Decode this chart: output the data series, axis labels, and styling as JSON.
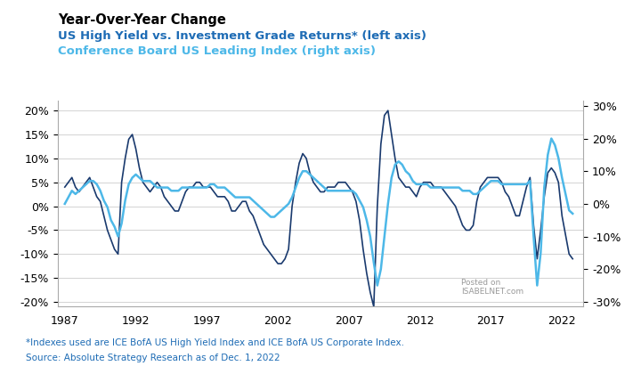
{
  "title_black": "Year-Over-Year Change",
  "title_blue1": "US High Yield vs. Investment Grade Returns* (left axis)",
  "title_blue2": "Conference Board US Leading Index (right axis)",
  "footnote1": "*Indexes used are ICE BofA US High Yield Index and ICE BofA US Corporate Index.",
  "footnote2": "Source: Absolute Strategy Research as of Dec. 1, 2022",
  "watermark": "Posted on\nISABELNET.com",
  "color_dark_blue": "#1a3a6e",
  "color_light_blue": "#4db8e8",
  "color_title_blue": "#1e6cb5",
  "left_ylim": [
    -0.21,
    0.22
  ],
  "right_ylim": [
    -0.315,
    0.315
  ],
  "left_yticks": [
    -0.2,
    -0.15,
    -0.1,
    -0.05,
    0.0,
    0.05,
    0.1,
    0.15,
    0.2
  ],
  "right_yticks": [
    -0.3,
    -0.2,
    -0.1,
    0.0,
    0.1,
    0.2,
    0.3
  ],
  "xticks": [
    1987,
    1992,
    1997,
    2002,
    2007,
    2012,
    2017,
    2022
  ],
  "xlim": [
    1986.5,
    2023.5
  ],
  "background_color": "#ffffff",
  "hy_ig_data": {
    "years": [
      1987.0,
      1987.25,
      1987.5,
      1987.75,
      1988.0,
      1988.25,
      1988.5,
      1988.75,
      1989.0,
      1989.25,
      1989.5,
      1989.75,
      1990.0,
      1990.25,
      1990.5,
      1990.75,
      1991.0,
      1991.25,
      1991.5,
      1991.75,
      1992.0,
      1992.25,
      1992.5,
      1992.75,
      1993.0,
      1993.25,
      1993.5,
      1993.75,
      1994.0,
      1994.25,
      1994.5,
      1994.75,
      1995.0,
      1995.25,
      1995.5,
      1995.75,
      1996.0,
      1996.25,
      1996.5,
      1996.75,
      1997.0,
      1997.25,
      1997.5,
      1997.75,
      1998.0,
      1998.25,
      1998.5,
      1998.75,
      1999.0,
      1999.25,
      1999.5,
      1999.75,
      2000.0,
      2000.25,
      2000.5,
      2000.75,
      2001.0,
      2001.25,
      2001.5,
      2001.75,
      2002.0,
      2002.25,
      2002.5,
      2002.75,
      2003.0,
      2003.25,
      2003.5,
      2003.75,
      2004.0,
      2004.25,
      2004.5,
      2004.75,
      2005.0,
      2005.25,
      2005.5,
      2005.75,
      2006.0,
      2006.25,
      2006.5,
      2006.75,
      2007.0,
      2007.25,
      2007.5,
      2007.75,
      2008.0,
      2008.25,
      2008.5,
      2008.75,
      2009.0,
      2009.25,
      2009.5,
      2009.75,
      2010.0,
      2010.25,
      2010.5,
      2010.75,
      2011.0,
      2011.25,
      2011.5,
      2011.75,
      2012.0,
      2012.25,
      2012.5,
      2012.75,
      2013.0,
      2013.25,
      2013.5,
      2013.75,
      2014.0,
      2014.25,
      2014.5,
      2014.75,
      2015.0,
      2015.25,
      2015.5,
      2015.75,
      2016.0,
      2016.25,
      2016.5,
      2016.75,
      2017.0,
      2017.25,
      2017.5,
      2017.75,
      2018.0,
      2018.25,
      2018.5,
      2018.75,
      2019.0,
      2019.25,
      2019.5,
      2019.75,
      2020.0,
      2020.25,
      2020.5,
      2020.75,
      2021.0,
      2021.25,
      2021.5,
      2021.75,
      2022.0,
      2022.25,
      2022.5,
      2022.75
    ],
    "values": [
      0.04,
      0.05,
      0.06,
      0.04,
      0.03,
      0.04,
      0.05,
      0.06,
      0.04,
      0.02,
      0.01,
      -0.02,
      -0.05,
      -0.07,
      -0.09,
      -0.1,
      0.05,
      0.1,
      0.14,
      0.15,
      0.12,
      0.08,
      0.05,
      0.04,
      0.03,
      0.04,
      0.05,
      0.04,
      0.02,
      0.01,
      0.0,
      -0.01,
      -0.01,
      0.01,
      0.03,
      0.04,
      0.04,
      0.05,
      0.05,
      0.04,
      0.04,
      0.04,
      0.03,
      0.02,
      0.02,
      0.02,
      0.01,
      -0.01,
      -0.01,
      0.0,
      0.01,
      0.01,
      -0.01,
      -0.02,
      -0.04,
      -0.06,
      -0.08,
      -0.09,
      -0.1,
      -0.11,
      -0.12,
      -0.12,
      -0.11,
      -0.09,
      0.0,
      0.05,
      0.09,
      0.11,
      0.1,
      0.07,
      0.05,
      0.04,
      0.03,
      0.03,
      0.04,
      0.04,
      0.04,
      0.05,
      0.05,
      0.05,
      0.04,
      0.03,
      0.01,
      -0.03,
      -0.09,
      -0.14,
      -0.18,
      -0.21,
      0.0,
      0.13,
      0.19,
      0.2,
      0.15,
      0.1,
      0.06,
      0.05,
      0.04,
      0.04,
      0.03,
      0.02,
      0.04,
      0.05,
      0.05,
      0.05,
      0.04,
      0.04,
      0.04,
      0.03,
      0.02,
      0.01,
      0.0,
      -0.02,
      -0.04,
      -0.05,
      -0.05,
      -0.04,
      0.01,
      0.04,
      0.05,
      0.06,
      0.06,
      0.06,
      0.06,
      0.05,
      0.03,
      0.02,
      0.0,
      -0.02,
      -0.02,
      0.01,
      0.04,
      0.06,
      -0.04,
      -0.11,
      -0.05,
      0.02,
      0.07,
      0.08,
      0.07,
      0.05,
      -0.02,
      -0.06,
      -0.1,
      -0.11
    ]
  },
  "lei_data": {
    "years": [
      1987.0,
      1987.25,
      1987.5,
      1987.75,
      1988.0,
      1988.25,
      1988.5,
      1988.75,
      1989.0,
      1989.25,
      1989.5,
      1989.75,
      1990.0,
      1990.25,
      1990.5,
      1990.75,
      1991.0,
      1991.25,
      1991.5,
      1991.75,
      1992.0,
      1992.25,
      1992.5,
      1992.75,
      1993.0,
      1993.25,
      1993.5,
      1993.75,
      1994.0,
      1994.25,
      1994.5,
      1994.75,
      1995.0,
      1995.25,
      1995.5,
      1995.75,
      1996.0,
      1996.25,
      1996.5,
      1996.75,
      1997.0,
      1997.25,
      1997.5,
      1997.75,
      1998.0,
      1998.25,
      1998.5,
      1998.75,
      1999.0,
      1999.25,
      1999.5,
      1999.75,
      2000.0,
      2000.25,
      2000.5,
      2000.75,
      2001.0,
      2001.25,
      2001.5,
      2001.75,
      2002.0,
      2002.25,
      2002.5,
      2002.75,
      2003.0,
      2003.25,
      2003.5,
      2003.75,
      2004.0,
      2004.25,
      2004.5,
      2004.75,
      2005.0,
      2005.25,
      2005.5,
      2005.75,
      2006.0,
      2006.25,
      2006.5,
      2006.75,
      2007.0,
      2007.25,
      2007.5,
      2007.75,
      2008.0,
      2008.25,
      2008.5,
      2008.75,
      2009.0,
      2009.25,
      2009.5,
      2009.75,
      2010.0,
      2010.25,
      2010.5,
      2010.75,
      2011.0,
      2011.25,
      2011.5,
      2011.75,
      2012.0,
      2012.25,
      2012.5,
      2012.75,
      2013.0,
      2013.25,
      2013.5,
      2013.75,
      2014.0,
      2014.25,
      2014.5,
      2014.75,
      2015.0,
      2015.25,
      2015.5,
      2015.75,
      2016.0,
      2016.25,
      2016.5,
      2016.75,
      2017.0,
      2017.25,
      2017.5,
      2017.75,
      2018.0,
      2018.25,
      2018.5,
      2018.75,
      2019.0,
      2019.25,
      2019.5,
      2019.75,
      2020.0,
      2020.25,
      2020.5,
      2020.75,
      2021.0,
      2021.25,
      2021.5,
      2021.75,
      2022.0,
      2022.25,
      2022.5,
      2022.75
    ],
    "values": [
      0.0,
      0.02,
      0.04,
      0.03,
      0.04,
      0.05,
      0.06,
      0.07,
      0.07,
      0.06,
      0.04,
      0.01,
      -0.01,
      -0.05,
      -0.07,
      -0.1,
      -0.06,
      0.01,
      0.06,
      0.08,
      0.09,
      0.08,
      0.07,
      0.07,
      0.07,
      0.06,
      0.05,
      0.05,
      0.05,
      0.05,
      0.04,
      0.04,
      0.04,
      0.05,
      0.05,
      0.05,
      0.05,
      0.05,
      0.05,
      0.05,
      0.05,
      0.06,
      0.06,
      0.05,
      0.05,
      0.05,
      0.04,
      0.03,
      0.02,
      0.02,
      0.02,
      0.02,
      0.02,
      0.01,
      0.0,
      -0.01,
      -0.02,
      -0.03,
      -0.04,
      -0.04,
      -0.03,
      -0.02,
      -0.01,
      0.0,
      0.02,
      0.05,
      0.08,
      0.1,
      0.1,
      0.09,
      0.08,
      0.07,
      0.06,
      0.05,
      0.04,
      0.04,
      0.04,
      0.04,
      0.04,
      0.04,
      0.04,
      0.04,
      0.03,
      0.01,
      -0.01,
      -0.05,
      -0.1,
      -0.18,
      -0.25,
      -0.2,
      -0.1,
      0.0,
      0.08,
      0.12,
      0.13,
      0.12,
      0.1,
      0.09,
      0.07,
      0.06,
      0.06,
      0.06,
      0.06,
      0.05,
      0.05,
      0.05,
      0.05,
      0.05,
      0.05,
      0.05,
      0.05,
      0.05,
      0.04,
      0.04,
      0.04,
      0.03,
      0.03,
      0.04,
      0.05,
      0.06,
      0.07,
      0.07,
      0.07,
      0.06,
      0.06,
      0.06,
      0.06,
      0.06,
      0.06,
      0.06,
      0.06,
      0.07,
      -0.1,
      -0.25,
      -0.15,
      0.05,
      0.15,
      0.2,
      0.18,
      0.14,
      0.08,
      0.03,
      -0.02,
      -0.03
    ]
  }
}
